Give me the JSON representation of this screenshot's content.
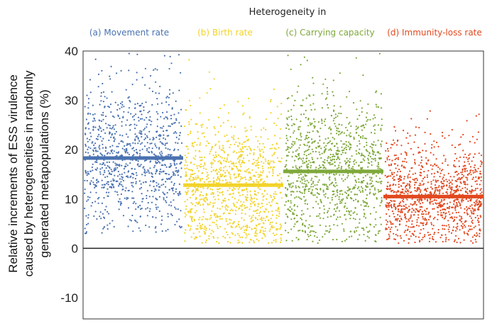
{
  "chart_data": {
    "type": "scatter",
    "suptitle": "Heterogeneity in",
    "ylabel_lines": [
      "Relative increments of ESS virulence",
      "caused by heterogeneities in randomly",
      "generated metapopulations (%)"
    ],
    "ylim": [
      -10,
      40
    ],
    "yticks": [
      -10,
      0,
      10,
      20,
      30,
      40
    ],
    "grid": false,
    "series": [
      {
        "name": "(a) Movement rate",
        "color": "#4a72b0",
        "mean": 18.3,
        "point_mean": 18.5,
        "point_sd": 7.5,
        "point_min": 3,
        "point_max": 40,
        "n": 950
      },
      {
        "name": "(b) Birth rate",
        "color": "#f2d32a",
        "mean": 12.8,
        "point_mean": 12.5,
        "point_sd": 7.5,
        "point_min": 1,
        "point_max": 40,
        "n": 1050
      },
      {
        "name": "(c) Carrying capacity",
        "color": "#7ea83a",
        "mean": 15.6,
        "point_mean": 15.8,
        "point_sd": 8,
        "point_min": 1,
        "point_max": 40,
        "n": 1050
      },
      {
        "name": "(d) Immunity-loss rate",
        "color": "#e2481f",
        "mean": 10.5,
        "point_mean": 10.5,
        "point_sd": 5.5,
        "point_min": 1,
        "point_max": 39,
        "n": 1100
      }
    ]
  }
}
